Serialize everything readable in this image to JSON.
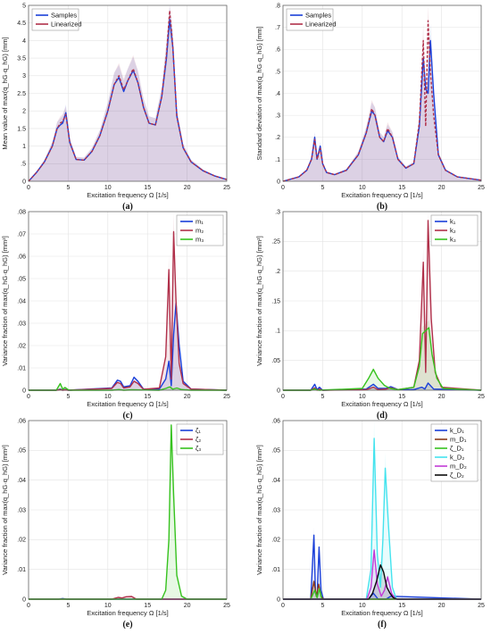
{
  "chart_data": [
    {
      "id": "a",
      "type": "line",
      "panel_label": "(a)",
      "xlabel": "Excitation frequency Ω [1/s]",
      "ylabel": "Mean value of max(q_hG·q_hG) [mm]",
      "xlim": [
        0,
        25
      ],
      "ylim": [
        0,
        5
      ],
      "xticks": [
        0,
        5,
        10,
        15,
        20,
        25
      ],
      "yticks": [
        0,
        0.5,
        1,
        1.5,
        2,
        2.5,
        3,
        3.5,
        4,
        4.5,
        5
      ],
      "grid": true,
      "legend": "top-left",
      "shaded_band": true,
      "series": [
        {
          "name": "Samples",
          "color": "#1a3fd9",
          "x": [
            0,
            1,
            2,
            3,
            3.6,
            4.0,
            4.3,
            4.7,
            5.2,
            6,
            7,
            8,
            9,
            10,
            10.8,
            11.4,
            12.0,
            12.5,
            13.2,
            13.8,
            14.5,
            15.2,
            16.0,
            16.8,
            17.4,
            17.8,
            18.2,
            18.7,
            19.5,
            20.5,
            22,
            23.5,
            25
          ],
          "y": [
            0,
            0.25,
            0.55,
            1.0,
            1.5,
            1.6,
            1.65,
            1.95,
            1.1,
            0.62,
            0.6,
            0.85,
            1.3,
            2.0,
            2.75,
            2.95,
            2.55,
            2.85,
            3.15,
            2.8,
            2.1,
            1.65,
            1.6,
            2.4,
            3.5,
            4.6,
            3.8,
            1.85,
            0.95,
            0.55,
            0.3,
            0.15,
            0.05
          ]
        },
        {
          "name": "Linearized",
          "color": "#b0304a",
          "x": [
            0,
            1,
            2,
            3,
            3.6,
            4.0,
            4.3,
            4.7,
            5.2,
            6,
            7,
            8,
            9,
            10,
            10.8,
            11.4,
            12.0,
            12.5,
            13.2,
            13.8,
            14.5,
            15.2,
            16.0,
            16.8,
            17.4,
            17.8,
            18.2,
            18.7,
            19.5,
            20.5,
            22,
            23.5,
            25
          ],
          "y": [
            0,
            0.25,
            0.55,
            1.0,
            1.5,
            1.65,
            1.7,
            1.9,
            1.1,
            0.62,
            0.6,
            0.85,
            1.3,
            2.0,
            2.75,
            3.0,
            2.6,
            2.85,
            3.2,
            2.8,
            2.1,
            1.65,
            1.6,
            2.4,
            3.6,
            4.85,
            3.8,
            1.85,
            0.95,
            0.55,
            0.3,
            0.15,
            0.05
          ]
        }
      ]
    },
    {
      "id": "b",
      "type": "line",
      "panel_label": "(b)",
      "xlabel": "Excitation frequency Ω [1/s]",
      "ylabel": "Standard deviation of max(q_hG·q_hG) [mm]",
      "xlim": [
        0,
        25
      ],
      "ylim": [
        0,
        0.8
      ],
      "xticks": [
        0,
        5,
        10,
        15,
        20,
        25
      ],
      "yticks": [
        0,
        0.1,
        0.2,
        0.3,
        0.4,
        0.5,
        0.6,
        0.7,
        0.8
      ],
      "grid": true,
      "legend": "top-left",
      "shaded_band": true,
      "series": [
        {
          "name": "Samples",
          "color": "#1a3fd9",
          "x": [
            0,
            2,
            3,
            3.6,
            4.0,
            4.3,
            4.7,
            5.0,
            5.5,
            6.5,
            8,
            9.5,
            10.5,
            11.2,
            11.6,
            12.2,
            12.7,
            13.2,
            13.8,
            14.5,
            15.5,
            16.5,
            17.2,
            17.7,
            18.0,
            18.3,
            18.6,
            19.0,
            19.6,
            20.5,
            22,
            25
          ],
          "y": [
            0,
            0.02,
            0.05,
            0.1,
            0.2,
            0.1,
            0.16,
            0.08,
            0.04,
            0.03,
            0.05,
            0.12,
            0.22,
            0.32,
            0.3,
            0.2,
            0.18,
            0.23,
            0.2,
            0.1,
            0.06,
            0.08,
            0.25,
            0.56,
            0.42,
            0.4,
            0.64,
            0.4,
            0.12,
            0.05,
            0.02,
            0.005
          ]
        },
        {
          "name": "Linearized",
          "color": "#b0304a",
          "x": [
            0,
            2,
            3,
            3.6,
            4.0,
            4.3,
            4.7,
            5.0,
            5.5,
            6.5,
            8,
            9.5,
            10.5,
            11.2,
            11.6,
            12.2,
            12.7,
            13.2,
            13.8,
            14.5,
            15.5,
            16.5,
            17.2,
            17.7,
            18.0,
            18.3,
            18.6,
            19.0,
            19.6,
            20.5,
            22,
            25
          ],
          "y": [
            0,
            0.02,
            0.05,
            0.1,
            0.19,
            0.1,
            0.15,
            0.08,
            0.04,
            0.03,
            0.05,
            0.12,
            0.22,
            0.33,
            0.3,
            0.2,
            0.18,
            0.24,
            0.2,
            0.1,
            0.06,
            0.08,
            0.27,
            0.64,
            0.25,
            0.73,
            0.5,
            0.3,
            0.12,
            0.05,
            0.02,
            0.005
          ]
        }
      ]
    },
    {
      "id": "c",
      "type": "line",
      "panel_label": "(c)",
      "xlabel": "Excitation frequency Ω [1/s]",
      "ylabel": "Variance fraction of max(q_hG·q_hG) [mm²]",
      "xlim": [
        0,
        25
      ],
      "ylim": [
        0,
        0.08
      ],
      "xticks": [
        0,
        5,
        10,
        15,
        20,
        25
      ],
      "yticks": [
        0,
        0.01,
        0.02,
        0.03,
        0.04,
        0.05,
        0.06,
        0.07,
        0.08
      ],
      "grid": true,
      "legend": "top-right",
      "shaded_band": true,
      "series": [
        {
          "name": "m₁",
          "color": "#1a3fd9",
          "x": [
            0,
            3.5,
            4.0,
            4.3,
            4.6,
            5.0,
            10.5,
            11.2,
            11.6,
            12.0,
            12.8,
            13.3,
            13.8,
            14.5,
            16.5,
            17.3,
            17.7,
            18.0,
            18.3,
            18.6,
            19.0,
            19.5,
            20.5,
            25
          ],
          "y": [
            0,
            0,
            0.0005,
            0,
            0.0003,
            0,
            0.001,
            0.0045,
            0.004,
            0.0015,
            0.002,
            0.0058,
            0.004,
            0.0005,
            0.0005,
            0.005,
            0.013,
            0.002,
            0.025,
            0.039,
            0.02,
            0.004,
            0.0005,
            0
          ]
        },
        {
          "name": "m₂",
          "color": "#b0304a",
          "x": [
            0,
            3.5,
            4.0,
            4.3,
            4.6,
            5.0,
            10.5,
            11.2,
            11.6,
            12.0,
            12.8,
            13.3,
            13.8,
            14.5,
            16.5,
            17.3,
            17.7,
            18.0,
            18.3,
            18.6,
            19.0,
            19.5,
            20.5,
            25
          ],
          "y": [
            0,
            0,
            0.0003,
            0,
            0.0002,
            0,
            0.0008,
            0.0035,
            0.003,
            0.001,
            0.0015,
            0.004,
            0.003,
            0.0004,
            0.001,
            0.015,
            0.054,
            0.005,
            0.071,
            0.04,
            0.012,
            0.003,
            0.0005,
            0
          ]
        },
        {
          "name": "m₃",
          "color": "#36c21e",
          "x": [
            0,
            3.5,
            4.0,
            4.3,
            4.6,
            5.0,
            5.3,
            10.5,
            11.4,
            12.0,
            13.0,
            16.5,
            17.3,
            17.8,
            18.2,
            18.7,
            19.3,
            20.5,
            25
          ],
          "y": [
            0,
            0,
            0.003,
            0.0005,
            0.0012,
            0.0002,
            0,
            0,
            0.0003,
            0,
            0.0002,
            0,
            0.0008,
            0.0015,
            0.0005,
            0.001,
            0.0003,
            0,
            0
          ]
        }
      ]
    },
    {
      "id": "d",
      "type": "line",
      "panel_label": "(d)",
      "xlabel": "Excitation frequency Ω [1/s]",
      "ylabel": "Variance fraction of max(q_hG·q_hG) [mm²]",
      "xlim": [
        0,
        25
      ],
      "ylim": [
        0,
        0.3
      ],
      "xticks": [
        0,
        5,
        10,
        15,
        20,
        25
      ],
      "yticks": [
        0,
        0.05,
        0.1,
        0.15,
        0.2,
        0.25,
        0.3
      ],
      "grid": true,
      "legend": "top-right",
      "shaded_band": true,
      "series": [
        {
          "name": "k₁",
          "color": "#1a3fd9",
          "x": [
            0,
            3.5,
            4.0,
            4.3,
            4.6,
            5.0,
            10.5,
            11.4,
            12.0,
            13.0,
            13.6,
            14.5,
            16.5,
            17.5,
            17.9,
            18.3,
            19.0,
            25
          ],
          "y": [
            0,
            0,
            0.01,
            0.001,
            0.005,
            0,
            0.002,
            0.01,
            0.003,
            0.003,
            0.006,
            0.001,
            0.001,
            0.005,
            0.002,
            0.012,
            0.002,
            0
          ]
        },
        {
          "name": "k₂",
          "color": "#b0304a",
          "x": [
            0,
            3.5,
            4.0,
            4.3,
            4.6,
            5.0,
            10.5,
            11.4,
            12.0,
            13.0,
            13.6,
            14.5,
            16.5,
            17.2,
            17.7,
            18.0,
            18.3,
            18.7,
            19.2,
            20.0,
            25
          ],
          "y": [
            0,
            0,
            0.004,
            0,
            0.002,
            0,
            0.001,
            0.005,
            0.001,
            0.002,
            0.004,
            0.001,
            0.005,
            0.05,
            0.215,
            0.03,
            0.285,
            0.12,
            0.03,
            0.005,
            0
          ]
        },
        {
          "name": "k₃",
          "color": "#36c21e",
          "x": [
            0,
            3.5,
            4.0,
            4.5,
            10.0,
            10.8,
            11.4,
            12.0,
            12.8,
            13.5,
            14.5,
            16.5,
            17.2,
            17.6,
            18.0,
            18.4,
            18.8,
            19.4,
            20.2,
            25
          ],
          "y": [
            0,
            0,
            0.002,
            0,
            0.003,
            0.02,
            0.035,
            0.02,
            0.008,
            0.003,
            0.001,
            0.005,
            0.04,
            0.095,
            0.1,
            0.105,
            0.06,
            0.02,
            0.003,
            0
          ]
        }
      ]
    },
    {
      "id": "e",
      "type": "line",
      "panel_label": "(e)",
      "xlabel": "Excitation frequency Ω [1/s]",
      "ylabel": "Variance fraction of max(q_hG·q_hG) [mm²]",
      "xlim": [
        0,
        25
      ],
      "ylim": [
        0,
        0.06
      ],
      "xticks": [
        0,
        5,
        10,
        15,
        20,
        25
      ],
      "yticks": [
        0,
        0.01,
        0.02,
        0.03,
        0.04,
        0.05,
        0.06
      ],
      "grid": true,
      "legend": "top-right",
      "shaded_band": true,
      "series": [
        {
          "name": "ζ₁",
          "color": "#1a3fd9",
          "x": [
            0,
            3.8,
            4.3,
            4.8,
            25
          ],
          "y": [
            0,
            0,
            0.0002,
            0,
            0
          ]
        },
        {
          "name": "ζ₂",
          "color": "#b0304a",
          "x": [
            0,
            10.5,
            11.3,
            11.8,
            12.3,
            13.0,
            13.6,
            25
          ],
          "y": [
            0,
            0,
            0.0006,
            0.0004,
            0.0008,
            0.0009,
            0,
            0
          ]
        },
        {
          "name": "ζ₃",
          "color": "#36c21e",
          "x": [
            0,
            16.8,
            17.3,
            17.7,
            18.0,
            18.3,
            18.7,
            19.3,
            20.0,
            25
          ],
          "y": [
            0,
            0,
            0.003,
            0.02,
            0.0585,
            0.035,
            0.008,
            0.001,
            0,
            0
          ]
        }
      ]
    },
    {
      "id": "f",
      "type": "line",
      "panel_label": "(f)",
      "xlabel": "Excitation frequency Ω [1/s]",
      "ylabel": "Variance fraction of max(q_hG·q_hG) [mm²]",
      "xlim": [
        0,
        25
      ],
      "ylim": [
        0,
        0.06
      ],
      "xticks": [
        0,
        5,
        10,
        15,
        20,
        25
      ],
      "yticks": [
        0,
        0.01,
        0.02,
        0.03,
        0.04,
        0.05,
        0.06
      ],
      "grid": true,
      "legend": "top-right",
      "shaded_band": true,
      "series": [
        {
          "name": "k_D₁",
          "color": "#1a3fd9",
          "x": [
            0,
            3.5,
            3.9,
            4.1,
            4.3,
            4.55,
            4.8,
            5.1,
            10.8,
            11.4,
            12.0,
            13.0,
            13.6,
            25
          ],
          "y": [
            0,
            0,
            0.0215,
            0.002,
            0.001,
            0.0175,
            0.003,
            0,
            0,
            0.002,
            0,
            0,
            0.001,
            0
          ]
        },
        {
          "name": "m_D₁",
          "color": "#8a3a1a",
          "x": [
            0,
            3.5,
            3.9,
            4.2,
            4.5,
            4.8,
            5.1,
            25
          ],
          "y": [
            0,
            0,
            0.006,
            0.001,
            0.005,
            0.001,
            0,
            0
          ]
        },
        {
          "name": "ζ_D₁",
          "color": "#36c21e",
          "x": [
            0,
            3.5,
            4.0,
            4.3,
            4.6,
            4.9,
            25
          ],
          "y": [
            0,
            0,
            0.003,
            0.0005,
            0.0035,
            0,
            0
          ]
        },
        {
          "name": "k_D₂",
          "color": "#45e3ee",
          "x": [
            0,
            10.5,
            11.1,
            11.5,
            11.9,
            12.3,
            12.6,
            12.9,
            13.3,
            13.8,
            14.3,
            25
          ],
          "y": [
            0,
            0,
            0.01,
            0.054,
            0.015,
            0.004,
            0.02,
            0.044,
            0.025,
            0.004,
            0,
            0
          ]
        },
        {
          "name": "m_D₂",
          "color": "#c13ad6",
          "x": [
            0,
            10.6,
            11.1,
            11.5,
            11.9,
            12.4,
            12.8,
            13.2,
            13.7,
            14.2,
            25
          ],
          "y": [
            0,
            0,
            0.004,
            0.0165,
            0.005,
            0.001,
            0.003,
            0.0075,
            0.002,
            0,
            0
          ]
        },
        {
          "name": "ζ_D₂",
          "color": "#0b0b0b",
          "x": [
            0,
            10.8,
            11.3,
            11.8,
            12.3,
            12.7,
            13.1,
            13.5,
            13.9,
            14.4,
            25
          ],
          "y": [
            0,
            0,
            0.002,
            0.006,
            0.0115,
            0.009,
            0.004,
            0.002,
            0.0005,
            0,
            0
          ]
        }
      ]
    }
  ]
}
